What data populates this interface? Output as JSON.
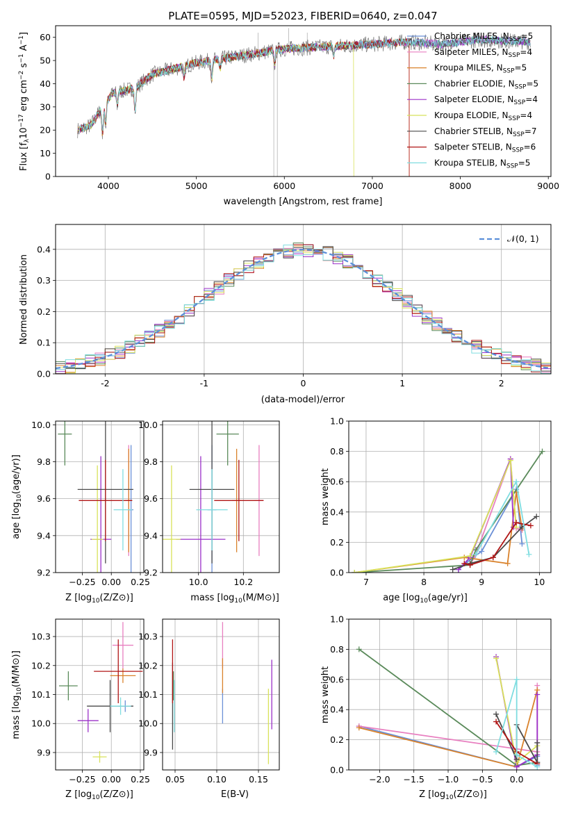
{
  "figure": {
    "title": "PLATE=0595, MJD=52023, FIBERID=0640, z=0.047"
  },
  "models": [
    {
      "name": "Chabrier MILES",
      "nssp": "5",
      "color": "#6b8fd6"
    },
    {
      "name": "Salpeter MILES",
      "nssp": "4",
      "color": "#e87fc0"
    },
    {
      "name": "Kroupa MILES",
      "nssp": "5",
      "color": "#d9822b"
    },
    {
      "name": "Chabrier ELODIE",
      "nssp": "5",
      "color": "#5a8a5a"
    },
    {
      "name": "Salpeter ELODIE",
      "nssp": "4",
      "color": "#9b30c8"
    },
    {
      "name": "Kroupa ELODIE",
      "nssp": "4",
      "color": "#d8e25a"
    },
    {
      "name": "Chabrier STELIB",
      "nssp": "7",
      "color": "#4a4a4a"
    },
    {
      "name": "Salpeter STELIB",
      "nssp": "6",
      "color": "#b01515"
    },
    {
      "name": "Kroupa STELIB",
      "nssp": "5",
      "color": "#7fdde0"
    }
  ],
  "chart_data": [
    {
      "id": "spectrum",
      "type": "line",
      "title": "PLATE=0595, MJD=52023, FIBERID=0640, z=0.047",
      "xlabel": "wavelength [Angstrom, rest frame]",
      "ylabel_main": "Flux [f",
      "ylabel_sub": "λ",
      "ylabel_rest": "10",
      "ylabel_exp1": "−17",
      "ylabel_unit": " erg cm",
      "ylabel_exp2": "−2",
      "ylabel_s": " s",
      "ylabel_exp3": "−1",
      "ylabel_A": " A",
      "ylabel_exp4": "−1",
      "ylabel_end": "]",
      "xlim": [
        3400,
        9030
      ],
      "ylim": [
        0,
        65
      ],
      "xticks": [
        4000,
        5000,
        6000,
        7000,
        8000,
        9000
      ],
      "yticks": [
        0,
        10,
        20,
        30,
        40,
        50,
        60
      ],
      "grid": false,
      "legend_position": "top-right",
      "continuum": [
        [
          3650,
          20
        ],
        [
          3800,
          22
        ],
        [
          3950,
          31
        ],
        [
          4050,
          36
        ],
        [
          4300,
          38
        ],
        [
          4500,
          44
        ],
        [
          5000,
          49
        ],
        [
          5500,
          52
        ],
        [
          6000,
          55
        ],
        [
          6500,
          56
        ],
        [
          7000,
          57
        ],
        [
          7400,
          58
        ],
        [
          7800,
          57
        ],
        [
          8200,
          59
        ],
        [
          8800,
          58
        ]
      ],
      "data_range": [
        3650,
        8800
      ],
      "model_ends": [
        8800,
        8800,
        7420,
        8800,
        8800,
        6790,
        8800,
        7420,
        8800
      ],
      "absorption_dips": [
        [
          3934,
          12
        ],
        [
          3969,
          10
        ],
        [
          4101,
          6
        ],
        [
          4304,
          10
        ],
        [
          4861,
          5
        ],
        [
          5175,
          8
        ],
        [
          5270,
          4
        ],
        [
          5890,
          6
        ],
        [
          6563,
          4
        ]
      ],
      "spikes": [
        [
          5880,
          0
        ],
        [
          5920,
          0
        ],
        [
          6050,
          64
        ],
        [
          6260,
          62
        ],
        [
          5700,
          62
        ]
      ]
    },
    {
      "id": "residuals",
      "type": "histogram",
      "xlabel": "(data-model)/error",
      "ylabel": "Normed distribution",
      "xlim": [
        -2.5,
        2.5
      ],
      "ylim": [
        0,
        0.48
      ],
      "xticks": [
        -2,
        -1,
        0,
        1,
        2
      ],
      "yticks": [
        0.0,
        0.1,
        0.2,
        0.3,
        0.4
      ],
      "grid": true,
      "reference": {
        "label": "𝒩(0, 1)",
        "mean": 0,
        "sigma": 1,
        "color": "#5b8fd9"
      },
      "legend_position": "top-right"
    },
    {
      "id": "age-vs-Z",
      "type": "errorbar",
      "xlabel": "Z [log",
      "xlabel_tail": "(Z/Z",
      "ylabel": "age  [log",
      "xlim": [
        -0.48,
        0.28
      ],
      "ylim": [
        9.2,
        10.02
      ],
      "xticks": [
        -0.25,
        0.0,
        0.25
      ],
      "yticks": [
        9.2,
        9.4,
        9.6,
        9.8,
        10.0
      ],
      "grid": true,
      "points": [
        {
          "x": 0.17,
          "y": 9.54,
          "xerr": 0.02,
          "yerr": 0.35
        },
        {
          "x": 0.15,
          "y": 9.59,
          "xerr": 0.02,
          "yerr": 0.3
        },
        {
          "x": 0.15,
          "y": 9.59,
          "xerr": 0.03,
          "yerr": 0.28
        },
        {
          "x": -0.4,
          "y": 9.95,
          "xerr": 0.06,
          "yerr": 0.17
        },
        {
          "x": -0.09,
          "y": 9.38,
          "xerr": 0.09,
          "yerr": 0.45
        },
        {
          "x": -0.12,
          "y": 9.38,
          "xerr": 0.05,
          "yerr": 0.4
        },
        {
          "x": -0.05,
          "y": 9.65,
          "xerr": 0.24,
          "yerr": 0.4
        },
        {
          "x": -0.05,
          "y": 9.59,
          "xerr": 0.23,
          "yerr": 0.22
        },
        {
          "x": 0.1,
          "y": 9.54,
          "xerr": 0.08,
          "yerr": 0.22
        }
      ]
    },
    {
      "id": "age-vs-mass",
      "type": "errorbar",
      "xlabel": "mass [log",
      "xlim": [
        9.84,
        10.36
      ],
      "ylim": [
        9.2,
        10.02
      ],
      "xticks": [
        10.0,
        10.2
      ],
      "yticks": [
        9.2,
        9.4,
        9.6,
        9.8,
        10.0
      ],
      "grid": true,
      "points": [
        {
          "x": 10.06,
          "y": 9.54,
          "xerr": 0.02,
          "yerr": 0.35
        },
        {
          "x": 10.27,
          "y": 9.59,
          "xerr": 0.02,
          "yerr": 0.3
        },
        {
          "x": 10.17,
          "y": 9.59,
          "xerr": 0.02,
          "yerr": 0.28
        },
        {
          "x": 10.13,
          "y": 9.95,
          "xerr": 0.05,
          "yerr": 0.17
        },
        {
          "x": 10.01,
          "y": 9.38,
          "xerr": 0.11,
          "yerr": 0.45
        },
        {
          "x": 9.88,
          "y": 9.38,
          "xerr": 0.04,
          "yerr": 0.4
        },
        {
          "x": 10.06,
          "y": 9.65,
          "xerr": 0.1,
          "yerr": 0.4
        },
        {
          "x": 10.18,
          "y": 9.59,
          "xerr": 0.11,
          "yerr": 0.22
        },
        {
          "x": 10.06,
          "y": 9.54,
          "xerr": 0.07,
          "yerr": 0.22
        }
      ]
    },
    {
      "id": "massweight-vs-age",
      "type": "line",
      "xlabel": "age  [log",
      "ylabel": "mass weight",
      "xlim": [
        6.7,
        10.2
      ],
      "ylim": [
        0,
        1.0
      ],
      "xticks": [
        7,
        8,
        9,
        10
      ],
      "yticks": [
        0.0,
        0.2,
        0.4,
        0.6,
        0.8,
        1.0
      ],
      "grid": true,
      "series": [
        [
          [
            8.6,
            0.02
          ],
          [
            8.85,
            0.1
          ],
          [
            9.0,
            0.14
          ],
          [
            9.6,
            0.55
          ],
          [
            9.7,
            0.19
          ]
        ],
        [
          [
            8.8,
            0.05
          ],
          [
            8.9,
            0.12
          ],
          [
            9.5,
            0.75
          ],
          [
            9.6,
            0.29
          ],
          [
            9.7,
            0.28
          ]
        ],
        [
          [
            6.8,
            0.0
          ],
          [
            8.7,
            0.1
          ],
          [
            9.45,
            0.06
          ],
          [
            9.6,
            0.53
          ],
          [
            9.7,
            0.29
          ]
        ],
        [
          [
            6.8,
            0.0
          ],
          [
            8.8,
            0.05
          ],
          [
            8.9,
            0.15
          ],
          [
            10.05,
            0.8
          ]
        ],
        [
          [
            8.6,
            0.02
          ],
          [
            8.8,
            0.1
          ],
          [
            9.5,
            0.75
          ],
          [
            9.55,
            0.3
          ]
        ],
        [
          [
            6.8,
            0.0
          ],
          [
            8.8,
            0.11
          ],
          [
            9.5,
            0.74
          ],
          [
            9.6,
            0.3
          ]
        ],
        [
          [
            8.5,
            0.02
          ],
          [
            8.8,
            0.06
          ],
          [
            9.2,
            0.1
          ],
          [
            9.7,
            0.3
          ],
          [
            9.95,
            0.37
          ]
        ],
        [
          [
            8.7,
            0.06
          ],
          [
            8.8,
            0.05
          ],
          [
            9.2,
            0.1
          ],
          [
            9.6,
            0.33
          ],
          [
            9.85,
            0.31
          ]
        ],
        [
          [
            8.9,
            0.12
          ],
          [
            9.6,
            0.6
          ],
          [
            9.82,
            0.12
          ]
        ]
      ]
    },
    {
      "id": "mass-vs-Z",
      "type": "errorbar",
      "xlabel": "Z [log",
      "ylabel": "mass [log",
      "xlim": [
        -0.48,
        0.28
      ],
      "ylim": [
        9.84,
        10.36
      ],
      "xticks": [
        -0.25,
        0.0,
        0.25
      ],
      "yticks": [
        9.9,
        10.0,
        10.1,
        10.2,
        10.3
      ],
      "grid": true,
      "points": [
        {
          "x": 0.12,
          "y": 10.06,
          "xerr": 0.06,
          "yerr": 0.02
        },
        {
          "x": 0.1,
          "y": 10.27,
          "xerr": 0.09,
          "yerr": 0.08
        },
        {
          "x": 0.1,
          "y": 10.165,
          "xerr": 0.11,
          "yerr": 0.025
        },
        {
          "x": -0.37,
          "y": 10.13,
          "xerr": 0.08,
          "yerr": 0.05
        },
        {
          "x": -0.2,
          "y": 10.01,
          "xerr": 0.09,
          "yerr": 0.04
        },
        {
          "x": -0.1,
          "y": 9.885,
          "xerr": 0.06,
          "yerr": 0.02
        },
        {
          "x": -0.01,
          "y": 10.06,
          "xerr": 0.2,
          "yerr": 0.09
        },
        {
          "x": 0.06,
          "y": 10.18,
          "xerr": 0.21,
          "yerr": 0.11
        },
        {
          "x": 0.08,
          "y": 10.06,
          "xerr": 0.09,
          "yerr": 0.03
        }
      ]
    },
    {
      "id": "mass-vs-EBV",
      "type": "errorbar",
      "xlabel": "E(B-V)",
      "xlim": [
        0.035,
        0.175
      ],
      "ylim": [
        9.84,
        10.36
      ],
      "xticks": [
        0.05,
        0.1,
        0.15
      ],
      "yticks": [
        9.9,
        10.0,
        10.1,
        10.2,
        10.3
      ],
      "grid": true,
      "points": [
        {
          "x": 0.107,
          "y": 10.06,
          "xerr": 0,
          "yerr": 0.06
        },
        {
          "x": 0.107,
          "y": 10.27,
          "xerr": 0,
          "yerr": 0.08
        },
        {
          "x": 0.107,
          "y": 10.165,
          "xerr": 0,
          "yerr": 0.06
        },
        {
          "x": 0.048,
          "y": 10.13,
          "xerr": 0,
          "yerr": 0.05
        },
        {
          "x": 0.166,
          "y": 10.1,
          "xerr": 0,
          "yerr": 0.12
        },
        {
          "x": 0.162,
          "y": 9.99,
          "xerr": 0,
          "yerr": 0.13
        },
        {
          "x": 0.047,
          "y": 10.06,
          "xerr": 0,
          "yerr": 0.15
        },
        {
          "x": 0.047,
          "y": 10.18,
          "xerr": 0,
          "yerr": 0.11
        },
        {
          "x": 0.049,
          "y": 10.06,
          "xerr": 0,
          "yerr": 0.09
        }
      ]
    },
    {
      "id": "massweight-vs-Z",
      "type": "line",
      "xlabel": "Z [log",
      "ylabel": "mass weight",
      "xlim": [
        -2.45,
        0.5
      ],
      "ylim": [
        0,
        1.0
      ],
      "xticks": [
        -2.0,
        -1.5,
        -1.0,
        -0.5,
        0.0
      ],
      "yticks": [
        0.0,
        0.2,
        0.4,
        0.6,
        0.8,
        1.0
      ],
      "grid": true,
      "series": [
        [
          [
            -2.3,
            0.29
          ],
          [
            0.0,
            0.02
          ],
          [
            0.3,
            0.09
          ],
          [
            0.3,
            0.03
          ]
        ],
        [
          [
            -2.3,
            0.29
          ],
          [
            0.3,
            0.12
          ],
          [
            0.3,
            0.56
          ]
        ],
        [
          [
            -2.3,
            0.28
          ],
          [
            0.0,
            0.02
          ],
          [
            0.3,
            0.53
          ]
        ],
        [
          [
            -2.3,
            0.8
          ],
          [
            0.0,
            0.03
          ],
          [
            0.3,
            0.05
          ]
        ],
        [
          [
            -0.3,
            0.75
          ],
          [
            0.0,
            0.02
          ],
          [
            0.3,
            0.1
          ],
          [
            0.3,
            0.5
          ]
        ],
        [
          [
            -0.3,
            0.74
          ],
          [
            0.0,
            0.05
          ],
          [
            0.3,
            0.16
          ]
        ],
        [
          [
            -0.3,
            0.37
          ],
          [
            0.0,
            0.07
          ],
          [
            0.0,
            0.3
          ],
          [
            0.3,
            0.05
          ],
          [
            0.3,
            0.18
          ]
        ],
        [
          [
            -0.3,
            0.32
          ],
          [
            0.0,
            0.12
          ],
          [
            0.3,
            0.04
          ]
        ],
        [
          [
            -0.3,
            0.12
          ],
          [
            0.0,
            0.6
          ],
          [
            0.0,
            0.1
          ],
          [
            0.3,
            0.02
          ]
        ]
      ]
    }
  ]
}
